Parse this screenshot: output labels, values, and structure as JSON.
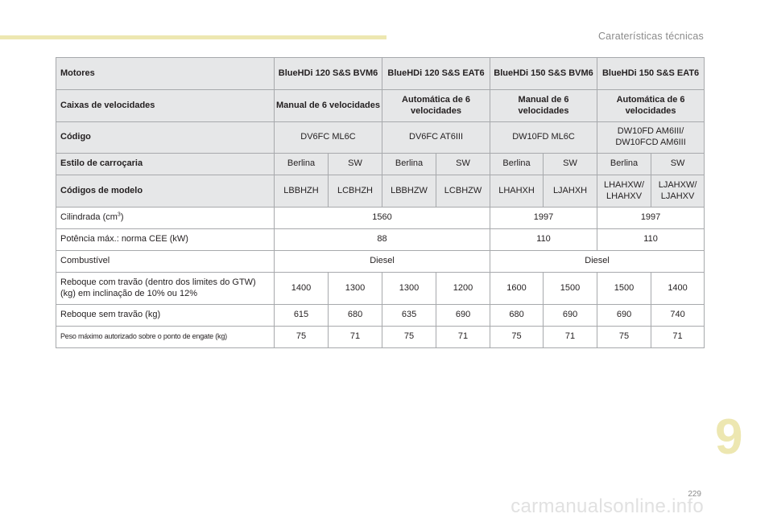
{
  "header": {
    "section_title": "Caraterísticas técnicas"
  },
  "table": {
    "motores_label": "Motores",
    "engines": [
      "BlueHDi 120 S&S BVM6",
      "BlueHDi 120 S&S EAT6",
      "BlueHDi 150 S&S BVM6",
      "BlueHDi 150 S&S EAT6"
    ],
    "gearbox_label": "Caixas de velocidades",
    "gearboxes": [
      "Manual de 6 velocidades",
      "Automática de 6 velocidades",
      "Manual de 6 velocidades",
      "Automática de 6 velocidades"
    ],
    "code_label": "Código",
    "codes": [
      "DV6FC ML6C",
      "DV6FC AT6III",
      "DW10FD ML6C",
      "DW10FD AM6III/ DW10FCD AM6III"
    ],
    "body_label": "Estilo de carroçaria",
    "bodies": [
      "Berlina",
      "SW",
      "Berlina",
      "SW",
      "Berlina",
      "SW",
      "Berlina",
      "SW"
    ],
    "model_codes_label": "Códigos de modelo",
    "model_codes": [
      "LBBHZH",
      "LCBHZH",
      "LBBHZW",
      "LCBHZW",
      "LHAHXH",
      "LJAHXH",
      "LHAHXW/ LHAHXV",
      "LJAHXW/ LJAHXV"
    ],
    "displacement_label": "Cilindrada (cm",
    "displacement_sup": "3",
    "displacement_label_end": ")",
    "displacement": [
      "1560",
      "1997",
      "1997"
    ],
    "power_label": "Potência máx.: norma CEE (kW)",
    "power": [
      "88",
      "110",
      "110"
    ],
    "fuel_label": "Combustível",
    "fuel": [
      "Diesel",
      "Diesel"
    ],
    "braked_trailer_label": "Reboque com travão (dentro dos limites do GTW) (kg) em inclinação de 10% ou 12%",
    "braked_trailer": [
      "1400",
      "1300",
      "1300",
      "1200",
      "1600",
      "1500",
      "1500",
      "1400"
    ],
    "unbraked_trailer_label": "Reboque sem travão (kg)",
    "unbraked_trailer": [
      "615",
      "680",
      "635",
      "690",
      "680",
      "690",
      "690",
      "740"
    ],
    "nose_weight_label": "Peso máximo autorizado sobre o ponto de engate (kg)",
    "nose_weight": [
      "75",
      "71",
      "75",
      "71",
      "75",
      "71",
      "75",
      "71"
    ]
  },
  "chapter_number": "9",
  "page_number": "229",
  "watermark": "carmanualsonline.info",
  "colors": {
    "accent": "#ede7b1",
    "shade": "#e6e7e8",
    "border": "#a7a9ac"
  }
}
